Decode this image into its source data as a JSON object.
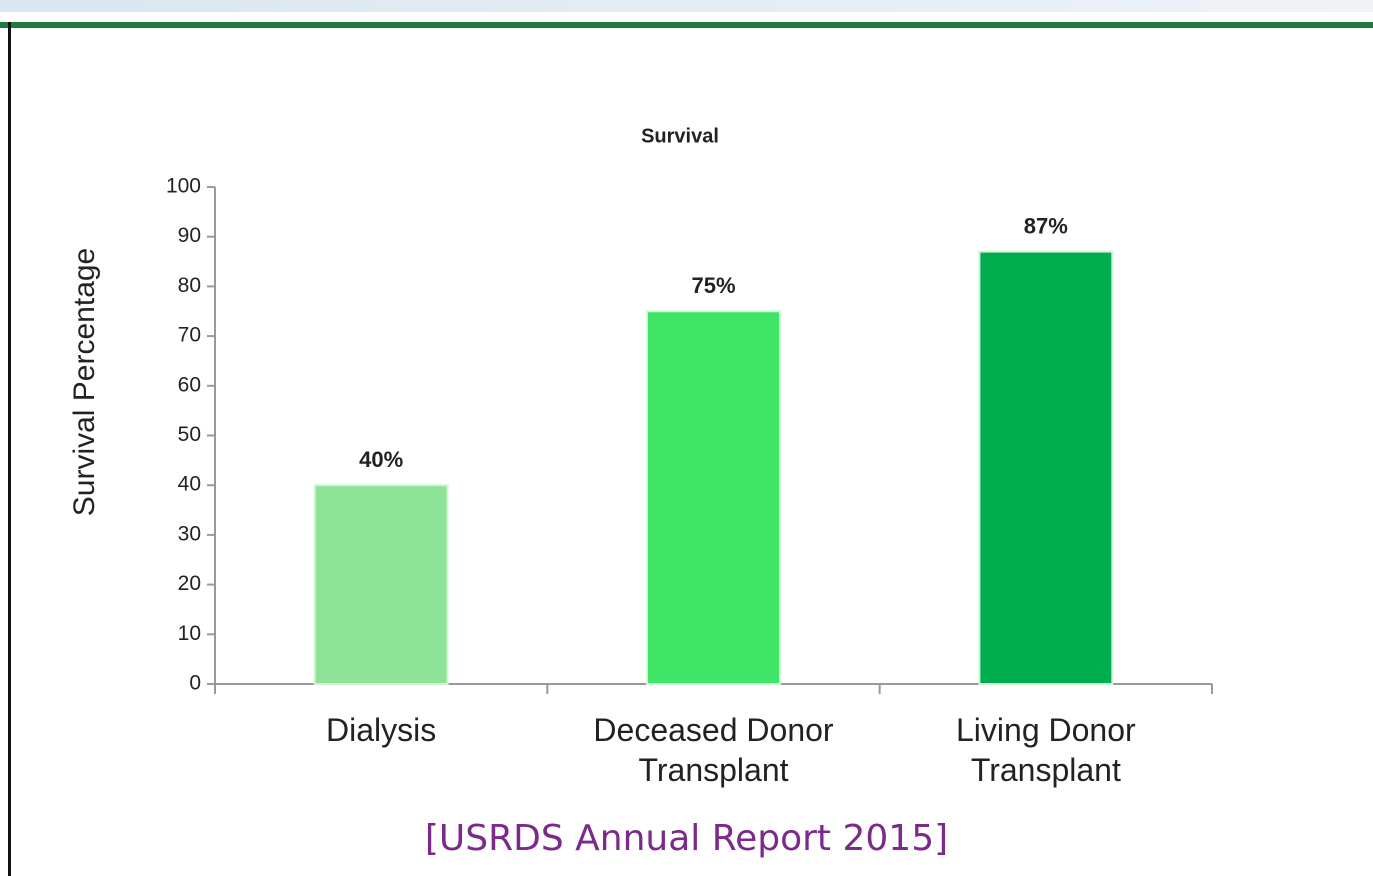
{
  "chart_data": {
    "type": "bar",
    "title": "Survival",
    "ylabel": "Survival Percentage",
    "categories": [
      "Dialysis",
      "Deceased Donor Transplant",
      "Living Donor Transplant"
    ],
    "values": [
      40,
      75,
      87
    ],
    "value_labels": [
      "40%",
      "75%",
      "87%"
    ],
    "colors": [
      "#8ee496",
      "#3ee566",
      "#00ad4e"
    ],
    "ylim": [
      0,
      100
    ],
    "yticks": [
      0,
      10,
      20,
      30,
      40,
      50,
      60,
      70,
      80,
      90,
      100
    ],
    "source": "[USRDS Annual Report 2015]"
  }
}
